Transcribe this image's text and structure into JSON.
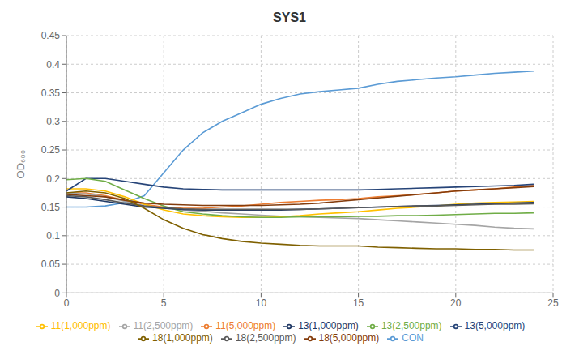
{
  "chart_data": {
    "type": "line",
    "title": "SYS1",
    "ylabel": "OD₆₀₀",
    "x": [
      0,
      1,
      2,
      3,
      4,
      5,
      6,
      7,
      8,
      9,
      10,
      11,
      12,
      13,
      14,
      15,
      16,
      17,
      18,
      19,
      20,
      21,
      22,
      23,
      24
    ],
    "series": [
      {
        "name": "CON",
        "color": "#5B9BD5",
        "values": [
          0.15,
          0.15,
          0.152,
          0.158,
          0.17,
          0.21,
          0.25,
          0.28,
          0.3,
          0.315,
          0.33,
          0.34,
          0.348,
          0.352,
          0.355,
          0.358,
          0.365,
          0.37,
          0.373,
          0.376,
          0.378,
          0.381,
          0.384,
          0.386,
          0.388
        ]
      },
      {
        "name": "11(5,000ppm)",
        "color": "#ED7D31",
        "values": [
          0.175,
          0.175,
          0.17,
          0.162,
          0.155,
          0.15,
          0.148,
          0.148,
          0.15,
          0.152,
          0.155,
          0.158,
          0.16,
          0.162,
          0.163,
          0.165,
          0.168,
          0.17,
          0.172,
          0.175,
          0.178,
          0.18,
          0.182,
          0.185,
          0.188
        ]
      },
      {
        "name": "11(2,500ppm)",
        "color": "#A5A5A5",
        "values": [
          0.175,
          0.173,
          0.168,
          0.16,
          0.152,
          0.148,
          0.145,
          0.143,
          0.14,
          0.138,
          0.136,
          0.134,
          0.133,
          0.132,
          0.131,
          0.13,
          0.128,
          0.126,
          0.124,
          0.122,
          0.12,
          0.118,
          0.115,
          0.113,
          0.112
        ]
      },
      {
        "name": "11(1,000ppm)",
        "color": "#FFC000",
        "values": [
          0.182,
          0.182,
          0.178,
          0.168,
          0.155,
          0.145,
          0.138,
          0.135,
          0.133,
          0.132,
          0.132,
          0.133,
          0.135,
          0.138,
          0.14,
          0.142,
          0.145,
          0.148,
          0.15,
          0.152,
          0.155,
          0.157,
          0.158,
          0.159,
          0.16
        ]
      },
      {
        "name": "13(5,000ppm)",
        "color": "#264478",
        "values": [
          0.178,
          0.2,
          0.2,
          0.195,
          0.19,
          0.185,
          0.182,
          0.181,
          0.18,
          0.18,
          0.18,
          0.18,
          0.18,
          0.18,
          0.18,
          0.18,
          0.181,
          0.182,
          0.183,
          0.184,
          0.185,
          0.186,
          0.187,
          0.188,
          0.19
        ]
      },
      {
        "name": "13(2,500ppm)",
        "color": "#70AD47",
        "values": [
          0.198,
          0.2,
          0.195,
          0.18,
          0.165,
          0.152,
          0.142,
          0.138,
          0.135,
          0.133,
          0.132,
          0.132,
          0.133,
          0.133,
          0.133,
          0.134,
          0.134,
          0.135,
          0.135,
          0.136,
          0.137,
          0.138,
          0.139,
          0.139,
          0.14
        ]
      },
      {
        "name": "13(1,000ppm)",
        "color": "#1F3864",
        "values": [
          0.168,
          0.165,
          0.16,
          0.155,
          0.15,
          0.148,
          0.146,
          0.145,
          0.145,
          0.145,
          0.145,
          0.145,
          0.146,
          0.147,
          0.148,
          0.149,
          0.15,
          0.151,
          0.152,
          0.153,
          0.154,
          0.155,
          0.156,
          0.157,
          0.158
        ]
      },
      {
        "name": "18(5,000ppm)",
        "color": "#843C0C",
        "values": [
          0.172,
          0.17,
          0.168,
          0.162,
          0.157,
          0.155,
          0.154,
          0.153,
          0.153,
          0.153,
          0.153,
          0.154,
          0.155,
          0.157,
          0.16,
          0.163,
          0.166,
          0.169,
          0.172,
          0.175,
          0.178,
          0.18,
          0.182,
          0.184,
          0.186
        ]
      },
      {
        "name": "18(2,500ppm)",
        "color": "#595959",
        "values": [
          0.17,
          0.168,
          0.163,
          0.157,
          0.152,
          0.149,
          0.147,
          0.146,
          0.146,
          0.146,
          0.146,
          0.146,
          0.146,
          0.147,
          0.148,
          0.149,
          0.15,
          0.151,
          0.152,
          0.152,
          0.153,
          0.154,
          0.155,
          0.155,
          0.156
        ]
      },
      {
        "name": "18(1,000ppm)",
        "color": "#7F6000",
        "values": [
          0.175,
          0.178,
          0.175,
          0.165,
          0.148,
          0.128,
          0.113,
          0.102,
          0.095,
          0.09,
          0.087,
          0.085,
          0.083,
          0.082,
          0.082,
          0.082,
          0.08,
          0.079,
          0.078,
          0.077,
          0.077,
          0.076,
          0.076,
          0.075,
          0.075
        ]
      }
    ],
    "xlim": [
      0,
      25
    ],
    "xticks": [
      0,
      5,
      10,
      15,
      20,
      25
    ],
    "ylim": [
      0,
      0.45
    ],
    "yticks": [
      0,
      0.05,
      0.1,
      0.15,
      0.2,
      0.25,
      0.3,
      0.35,
      0.4,
      0.45
    ],
    "grid": true,
    "legend": "bottom"
  }
}
